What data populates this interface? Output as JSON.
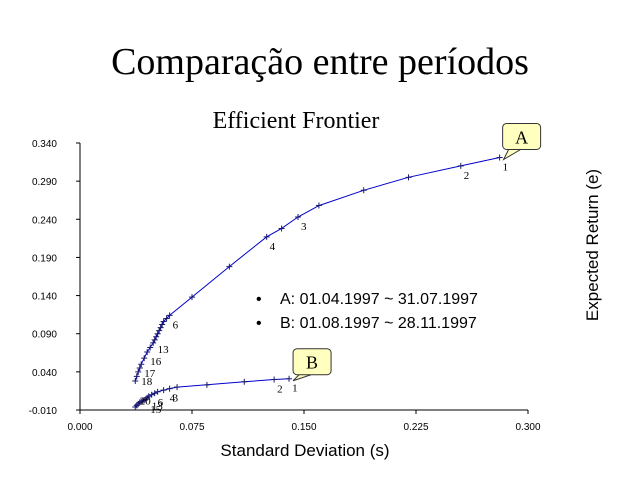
{
  "slide": {
    "title": "Comparação entre períodos"
  },
  "chart_data": {
    "type": "scatter",
    "title": "Efficient Frontier",
    "xlabel": "Standard Deviation (s)",
    "ylabel": "Expected Return (e)",
    "xlim": [
      0.0,
      0.3
    ],
    "ylim": [
      -0.01,
      0.34
    ],
    "xticks": [
      "0.000",
      "0.075",
      "0.150",
      "0.225",
      "0.300"
    ],
    "yticks": [
      "-0.010",
      "0.040",
      "0.090",
      "0.140",
      "0.190",
      "0.240",
      "0.290",
      "0.340"
    ],
    "grid": false,
    "line_color": "#0000cc",
    "series": [
      {
        "name": "A",
        "callout": "A",
        "x": [
          0.281,
          0.255,
          0.22,
          0.19,
          0.16,
          0.146,
          0.135,
          0.125,
          0.1,
          0.075,
          0.06,
          0.058,
          0.056,
          0.055,
          0.054,
          0.053,
          0.052,
          0.051,
          0.05,
          0.049,
          0.047,
          0.045,
          0.043,
          0.041,
          0.04,
          0.039,
          0.038,
          0.037
        ],
        "y": [
          0.321,
          0.31,
          0.295,
          0.278,
          0.258,
          0.243,
          0.228,
          0.217,
          0.178,
          0.138,
          0.114,
          0.11,
          0.106,
          0.102,
          0.098,
          0.094,
          0.09,
          0.086,
          0.082,
          0.078,
          0.072,
          0.066,
          0.058,
          0.05,
          0.045,
          0.04,
          0.034,
          0.028
        ],
        "point_labels": [
          {
            "label": "1",
            "x": 0.281,
            "y": 0.321
          },
          {
            "label": "2",
            "x": 0.255,
            "y": 0.31
          },
          {
            "label": "3",
            "x": 0.146,
            "y": 0.243
          },
          {
            "label": "4",
            "x": 0.125,
            "y": 0.217
          },
          {
            "label": "6",
            "x": 0.06,
            "y": 0.114
          },
          {
            "label": "13",
            "x": 0.05,
            "y": 0.082
          },
          {
            "label": "16",
            "x": 0.045,
            "y": 0.066
          },
          {
            "label": "17",
            "x": 0.041,
            "y": 0.05
          },
          {
            "label": "18",
            "x": 0.039,
            "y": 0.04
          }
        ]
      },
      {
        "name": "B",
        "callout": "B",
        "x": [
          0.14,
          0.13,
          0.11,
          0.085,
          0.065,
          0.06,
          0.056,
          0.052,
          0.05,
          0.048,
          0.046,
          0.045,
          0.044,
          0.043,
          0.042,
          0.041,
          0.04,
          0.039,
          0.038,
          0.037
        ],
        "y": [
          0.031,
          0.03,
          0.027,
          0.023,
          0.02,
          0.018,
          0.016,
          0.014,
          0.012,
          0.01,
          0.008,
          0.006,
          0.004,
          0.003,
          0.002,
          0.001,
          0.0,
          -0.002,
          -0.004,
          -0.006
        ],
        "point_labels": [
          {
            "label": "1",
            "x": 0.14,
            "y": 0.031
          },
          {
            "label": "2",
            "x": 0.13,
            "y": 0.03
          },
          {
            "label": "3",
            "x": 0.06,
            "y": 0.018
          },
          {
            "label": "4",
            "x": 0.058,
            "y": 0.018
          },
          {
            "label": "6",
            "x": 0.05,
            "y": 0.012
          },
          {
            "label": "13",
            "x": 0.046,
            "y": 0.008
          },
          {
            "label": "15",
            "x": 0.045,
            "y": 0.003
          },
          {
            "label": "20",
            "x": 0.038,
            "y": 0.014
          }
        ]
      }
    ],
    "annotations": [
      "A: 01.04.1997 ~ 31.07.1997",
      "B: 01.08.1997 ~ 28.11.1997"
    ],
    "callout_fill": "#ffffc0"
  }
}
